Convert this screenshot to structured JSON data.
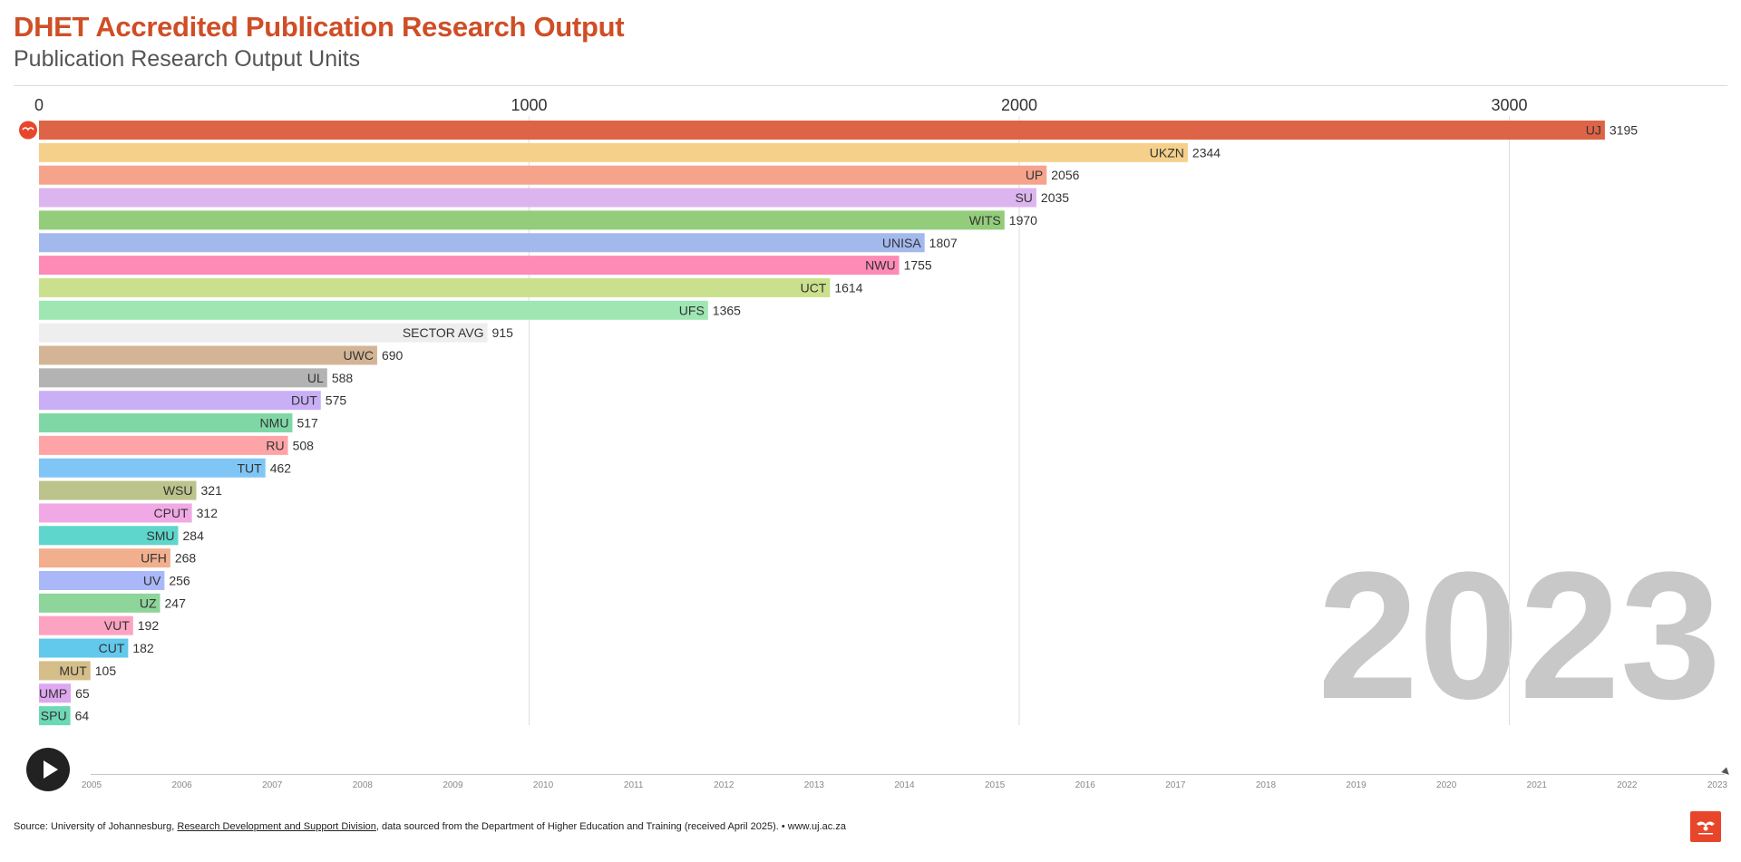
{
  "header": {
    "title": "DHET Accredited Publication Research Output",
    "subtitle": "Publication Research Output Units"
  },
  "chart_data": {
    "type": "bar",
    "orientation": "horizontal",
    "title": "DHET Accredited Publication Research Output",
    "subtitle": "Publication Research Output Units",
    "current_year": "2023",
    "xlim": [
      0,
      3300
    ],
    "x_ticks": [
      "0",
      "1000",
      "2000",
      "3000"
    ],
    "grid": true,
    "categories": [
      "UJ",
      "UKZN",
      "UP",
      "SU",
      "WITS",
      "UNISA",
      "NWU",
      "UCT",
      "UFS",
      "SECTOR AVG",
      "UWC",
      "UL",
      "DUT",
      "NMU",
      "RU",
      "TUT",
      "WSU",
      "CPUT",
      "SMU",
      "UFH",
      "UV",
      "UZ",
      "VUT",
      "CUT",
      "MUT",
      "UMP",
      "SPU"
    ],
    "values": [
      3195,
      2344,
      2056,
      2035,
      1970,
      1807,
      1755,
      1614,
      1365,
      915,
      690,
      588,
      575,
      517,
      508,
      462,
      321,
      312,
      284,
      268,
      256,
      247,
      192,
      182,
      105,
      65,
      64
    ],
    "colors": [
      "#dd6446",
      "#f5d08a",
      "#f6a38c",
      "#dcb5ee",
      "#93cc7b",
      "#a3b9ee",
      "#fe8ab6",
      "#cbe08c",
      "#9ee7b3",
      "#eeeeee",
      "#d3b596",
      "#b3b3b3",
      "#c9aff6",
      "#80d7a6",
      "#fea4a6",
      "#7fc6f6",
      "#bcc48c",
      "#f0a9e5",
      "#5fd6cb",
      "#f2af8e",
      "#aab7f8",
      "#8dd59a",
      "#fca3c1",
      "#63c9ec",
      "#d6be8a",
      "#dea7ef",
      "#6dd8b5"
    ]
  },
  "timeline": {
    "years": [
      "2005",
      "2006",
      "2007",
      "2008",
      "2009",
      "2010",
      "2011",
      "2012",
      "2013",
      "2014",
      "2015",
      "2016",
      "2017",
      "2018",
      "2019",
      "2020",
      "2021",
      "2022",
      "2023"
    ]
  },
  "footer": {
    "prefix": "Source: University of Johannesburg, ",
    "link": "Research Development and Support Division",
    "suffix": ", data sourced from the Department of Higher Education and Training (received April 2025). • www.uj.ac.za"
  }
}
